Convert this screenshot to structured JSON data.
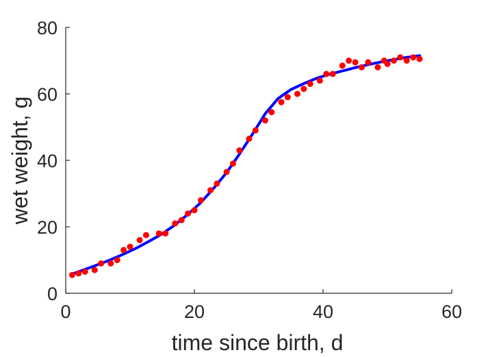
{
  "chart_data": {
    "type": "scatter",
    "title": "",
    "xlabel": "time since birth, d",
    "ylabel": "wet weight, g",
    "xlim": [
      0,
      60
    ],
    "ylim": [
      0,
      80
    ],
    "xticks": [
      0,
      20,
      40,
      60
    ],
    "yticks": [
      0,
      20,
      40,
      60,
      80
    ],
    "grid": false,
    "legend": "none",
    "series": [
      {
        "kind": "points",
        "color": "#ff0000",
        "x": [
          1,
          2,
          3,
          4.5,
          5.5,
          7,
          8,
          9,
          10,
          11.5,
          12.5,
          14.5,
          15.5,
          17,
          18,
          19,
          20,
          21,
          22.5,
          23.5,
          25,
          26,
          27,
          28.5,
          29.5,
          31,
          32,
          33.5,
          34.5,
          36,
          37,
          38,
          39.5,
          40.5,
          41.5,
          43,
          44,
          45,
          46,
          47,
          48.5,
          49.5,
          50,
          51,
          52,
          53,
          54,
          55
        ],
        "y": [
          5.5,
          6,
          6.5,
          7,
          9,
          9,
          10,
          13,
          14,
          16,
          17.5,
          18,
          18,
          21,
          22,
          24,
          25,
          28,
          31,
          33,
          36.5,
          39,
          43,
          46.5,
          49,
          52,
          54.5,
          57.5,
          59,
          60,
          61.5,
          63,
          64,
          66,
          66,
          68.5,
          70,
          69.5,
          68,
          69.5,
          68,
          70,
          69,
          70,
          71,
          70,
          71,
          70.5
        ]
      },
      {
        "kind": "curve",
        "color": "#0000ff",
        "x": [
          1,
          3,
          5,
          7,
          9,
          11,
          13,
          15,
          17,
          19,
          21,
          23,
          25,
          27,
          29,
          31,
          33,
          35,
          37,
          39,
          41,
          43,
          45,
          47,
          49,
          51,
          53,
          55
        ],
        "y": [
          5.8,
          7.2,
          8.6,
          10.1,
          11.8,
          13.6,
          15.7,
          17.9,
          20.6,
          23.8,
          27.3,
          31.6,
          36.3,
          41.9,
          47.8,
          54,
          58.6,
          61.3,
          63.1,
          64.7,
          65.9,
          66.9,
          67.9,
          68.8,
          69.6,
          70.3,
          71,
          71.5
        ]
      }
    ]
  }
}
